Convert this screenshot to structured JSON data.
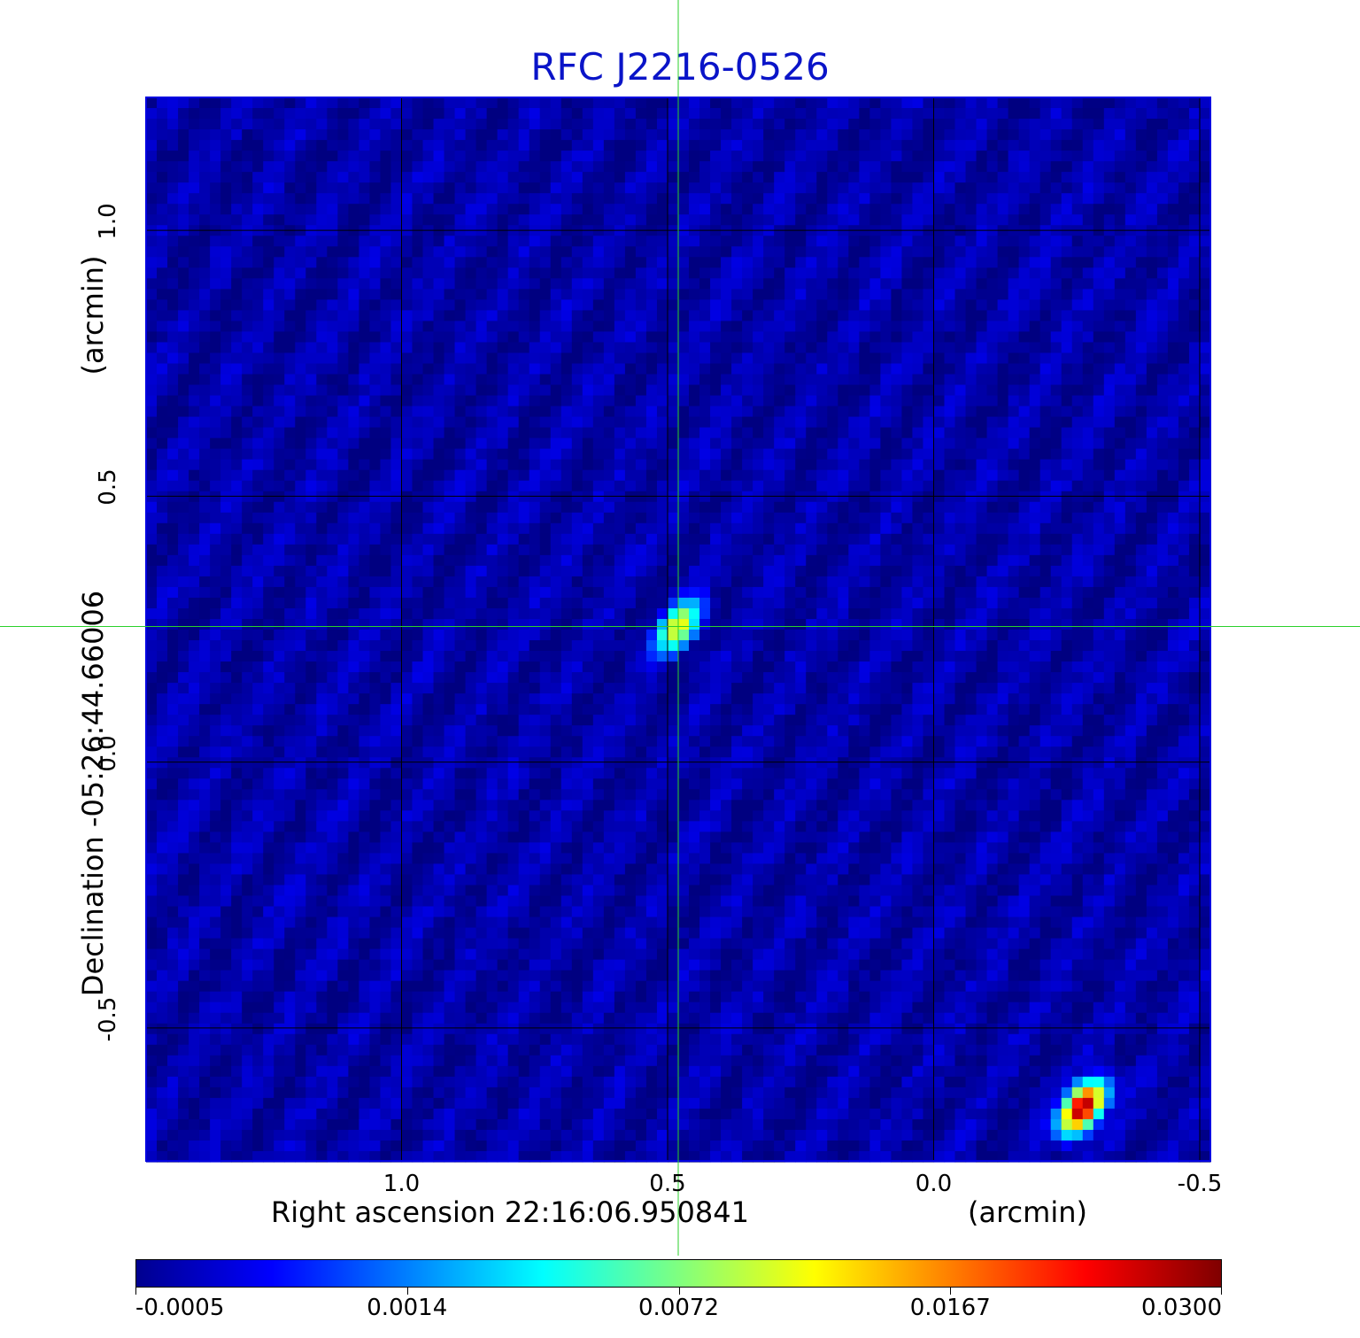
{
  "colors": {
    "title": "#0a14c8",
    "crosshair": "#2bd12b",
    "grid": "#000000"
  },
  "chart_data": {
    "type": "heatmap",
    "title": "RFC J2216-0526",
    "xlabel": "Right ascension  22:16:06.950841",
    "xunit": "(arcmin)",
    "ylabel": "Declination  -05:26:44.66006",
    "yunit": "(arcmin)",
    "colormap": "jet",
    "xlim": [
      1.48,
      -0.52
    ],
    "ylim": [
      -0.75,
      1.25
    ],
    "x_ticks": [
      {
        "label": "1.0",
        "value": 1.0
      },
      {
        "label": "0.5",
        "value": 0.5
      },
      {
        "label": "0.0",
        "value": 0.0
      },
      {
        "label": "-0.5",
        "value": -0.5
      }
    ],
    "y_ticks": [
      {
        "label": "1.0",
        "value": 1.0
      },
      {
        "label": "0.5",
        "value": 0.5
      },
      {
        "label": "0.0",
        "value": 0.0
      },
      {
        "label": "-0.5",
        "value": -0.5
      }
    ],
    "grid": true,
    "crosshair": {
      "x": 0.48,
      "y": 0.255
    },
    "sources": [
      {
        "x": 0.48,
        "y": 0.255,
        "peak": 0.012
      },
      {
        "x": -0.28,
        "y": -0.65,
        "peak": 0.03
      }
    ],
    "background_level": -0.0002,
    "colorbar": {
      "labels": [
        "-0.0005",
        "0.0014",
        "0.0072",
        "0.0167",
        "0.0300"
      ]
    }
  }
}
